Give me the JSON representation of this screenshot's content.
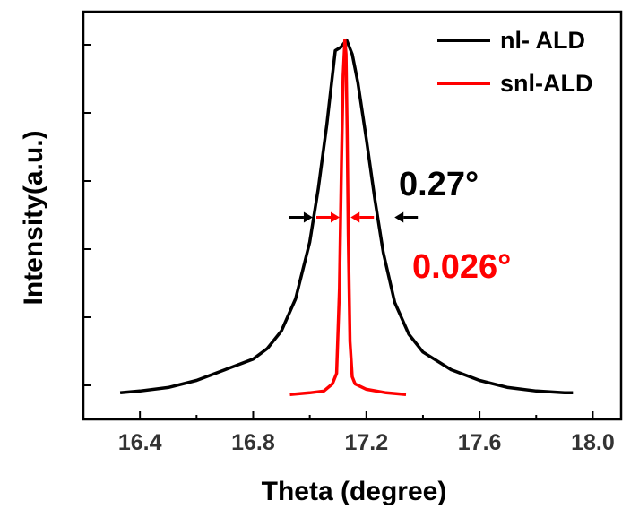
{
  "chart_data": {
    "type": "line",
    "xlabel": "Theta (degree)",
    "ylabel": "Intensity(a.u.)",
    "xlim": [
      16.2,
      18.1
    ],
    "ylim": [
      -0.07,
      1.08
    ],
    "x_ticks": [
      "16.4",
      "16.8",
      "17.2",
      "17.6",
      "18.0"
    ],
    "x_tick_values": [
      16.4,
      16.8,
      17.2,
      17.6,
      18.0
    ],
    "y_tick_labels_shown": false,
    "grid": false,
    "legend_position": "top-right",
    "series": [
      {
        "name": "nl- ALD",
        "color": "#000000",
        "x": [
          16.33,
          16.4,
          16.5,
          16.6,
          16.7,
          16.8,
          16.85,
          16.9,
          16.95,
          17.0,
          17.03,
          17.06,
          17.09,
          17.11,
          17.13,
          17.15,
          17.17,
          17.2,
          17.23,
          17.26,
          17.3,
          17.35,
          17.4,
          17.5,
          17.6,
          17.7,
          17.8,
          17.9,
          17.93
        ],
        "y": [
          0.005,
          0.01,
          0.02,
          0.04,
          0.07,
          0.1,
          0.13,
          0.18,
          0.27,
          0.43,
          0.58,
          0.76,
          0.97,
          0.98,
          1.0,
          0.96,
          0.88,
          0.72,
          0.55,
          0.4,
          0.26,
          0.17,
          0.12,
          0.07,
          0.04,
          0.02,
          0.01,
          0.005,
          0.005
        ]
      },
      {
        "name": "snl-ALD",
        "color": "#ff0000",
        "x": [
          16.93,
          17.0,
          17.05,
          17.08,
          17.095,
          17.105,
          17.112,
          17.118,
          17.124,
          17.128,
          17.132,
          17.136,
          17.142,
          17.15,
          17.16,
          17.2,
          17.27,
          17.34
        ],
        "y": [
          0.0,
          0.005,
          0.01,
          0.03,
          0.06,
          0.3,
          0.65,
          0.9,
          1.0,
          0.96,
          0.75,
          0.45,
          0.15,
          0.05,
          0.03,
          0.015,
          0.005,
          0.0
        ]
      }
    ],
    "annotations": [
      {
        "text": "0.27°",
        "color": "#000000"
      },
      {
        "text": "0.026°",
        "color": "#ff0000"
      }
    ]
  }
}
